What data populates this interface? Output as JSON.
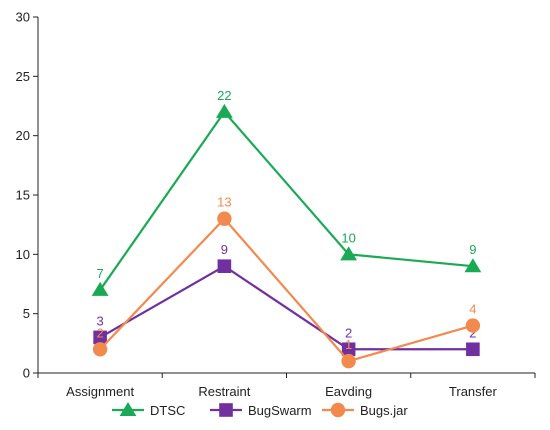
{
  "chart_data": {
    "type": "line",
    "title": "",
    "xlabel": "",
    "ylabel": "",
    "categories": [
      "Assignment",
      "Restraint",
      "Eavding",
      "Transfer"
    ],
    "ylim": [
      0,
      30
    ],
    "yticks": [
      0,
      5,
      10,
      15,
      20,
      25,
      30
    ],
    "grid": false,
    "legend": "bottom",
    "series": [
      {
        "name": "DTSC",
        "values": [
          7,
          22,
          10,
          9
        ],
        "color": "#1aaa55",
        "marker": "triangle"
      },
      {
        "name": "BugSwarm",
        "values": [
          3,
          9,
          2,
          2
        ],
        "color": "#7030a0",
        "marker": "square"
      },
      {
        "name": "Bugs.jar",
        "values": [
          2,
          13,
          1,
          4
        ],
        "color": "#f28a4e",
        "marker": "circle"
      }
    ]
  }
}
